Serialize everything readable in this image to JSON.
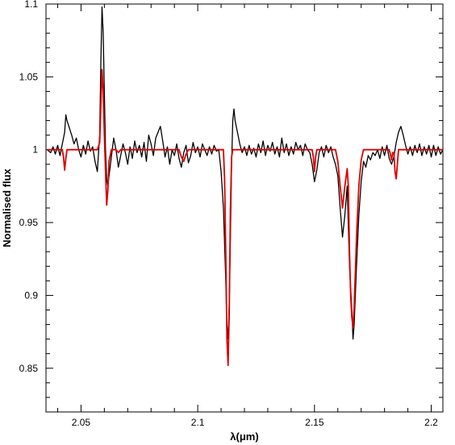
{
  "chart_data": {
    "type": "line",
    "title": "",
    "xlabel": "λ(μm)",
    "ylabel": "Normalised flux",
    "xlim": [
      2.035,
      2.205
    ],
    "ylim": [
      0.82,
      1.1
    ],
    "xticks": [
      2.05,
      2.1,
      2.15,
      2.2
    ],
    "xtick_labels": [
      "2.05",
      "2.1",
      "2.15",
      "2.2"
    ],
    "yticks": [
      0.85,
      0.9,
      0.95,
      1.0,
      1.05,
      1.1
    ],
    "ytick_labels": [
      "0.85",
      "0.9",
      "0.95",
      "1",
      "1.05",
      "1.1"
    ],
    "grid": false,
    "legend": "none",
    "series": [
      {
        "color": "#000000",
        "points": [
          [
            2.0355,
            1.0
          ],
          [
            2.037,
            0.998
          ],
          [
            2.038,
            1.002
          ],
          [
            2.039,
            0.997
          ],
          [
            2.04,
            1.003
          ],
          [
            2.041,
            0.996
          ],
          [
            2.042,
            1.004
          ],
          [
            2.043,
            1.012
          ],
          [
            2.0435,
            1.024
          ],
          [
            2.044,
            1.02
          ],
          [
            2.045,
            1.015
          ],
          [
            2.046,
            1.01
          ],
          [
            2.047,
            1.004
          ],
          [
            2.048,
            1.008
          ],
          [
            2.049,
            1.0
          ],
          [
            2.05,
            0.995
          ],
          [
            2.051,
            1.003
          ],
          [
            2.052,
            0.997
          ],
          [
            2.053,
            1.006
          ],
          [
            2.054,
            0.999
          ],
          [
            2.055,
            1.002
          ],
          [
            2.056,
            0.992
          ],
          [
            2.057,
            0.985
          ],
          [
            2.058,
            1.01
          ],
          [
            2.0585,
            1.06
          ],
          [
            2.059,
            1.098
          ],
          [
            2.0595,
            1.08
          ],
          [
            2.06,
            1.04
          ],
          [
            2.0605,
            1.0
          ],
          [
            2.061,
            0.98
          ],
          [
            2.0615,
            0.975
          ],
          [
            2.062,
            0.982
          ],
          [
            2.063,
            0.995
          ],
          [
            2.064,
            1.008
          ],
          [
            2.065,
            1.0
          ],
          [
            2.066,
            0.988
          ],
          [
            2.067,
            0.996
          ],
          [
            2.068,
            1.004
          ],
          [
            2.069,
            0.998
          ],
          [
            2.07,
            0.99
          ],
          [
            2.071,
            1.002
          ],
          [
            2.072,
            0.994
          ],
          [
            2.073,
            1.006
          ],
          [
            2.074,
            0.998
          ],
          [
            2.075,
            1.003
          ],
          [
            2.076,
            0.995
          ],
          [
            2.077,
            1.005
          ],
          [
            2.078,
            0.992
          ],
          [
            2.079,
            1.01
          ],
          [
            2.08,
            1.004
          ],
          [
            2.081,
            0.996
          ],
          [
            2.082,
            1.008
          ],
          [
            2.083,
            1.012
          ],
          [
            2.084,
            1.016
          ],
          [
            2.085,
            1.006
          ],
          [
            2.086,
            0.995
          ],
          [
            2.087,
            1.002
          ],
          [
            2.088,
            0.99
          ],
          [
            2.089,
            1.0
          ],
          [
            2.09,
            0.996
          ],
          [
            2.091,
            1.004
          ],
          [
            2.092,
            0.994
          ],
          [
            2.093,
            0.988
          ],
          [
            2.094,
            0.998
          ],
          [
            2.095,
            1.003
          ],
          [
            2.096,
            0.991
          ],
          [
            2.097,
            0.996
          ],
          [
            2.098,
            1.005
          ],
          [
            2.099,
            0.998
          ],
          [
            2.1,
            1.002
          ],
          [
            2.101,
            0.995
          ],
          [
            2.102,
            1.004
          ],
          [
            2.103,
            1.0
          ],
          [
            2.104,
            0.996
          ],
          [
            2.105,
            1.002
          ],
          [
            2.106,
            0.997
          ],
          [
            2.107,
            1.003
          ],
          [
            2.108,
            0.999
          ],
          [
            2.109,
            1.0
          ],
          [
            2.11,
            0.985
          ],
          [
            2.111,
            0.96
          ],
          [
            2.112,
            0.91
          ],
          [
            2.1125,
            0.88
          ],
          [
            2.113,
            0.87
          ],
          [
            2.1135,
            0.895
          ],
          [
            2.114,
            0.94
          ],
          [
            2.1145,
            0.99
          ],
          [
            2.115,
            1.02
          ],
          [
            2.1155,
            1.028
          ],
          [
            2.116,
            1.02
          ],
          [
            2.117,
            1.012
          ],
          [
            2.118,
            1.004
          ],
          [
            2.119,
            0.998
          ],
          [
            2.12,
            1.002
          ],
          [
            2.121,
            0.996
          ],
          [
            2.122,
            1.003
          ],
          [
            2.123,
            0.997
          ],
          [
            2.124,
            1.001
          ],
          [
            2.125,
            0.995
          ],
          [
            2.126,
            1.004
          ],
          [
            2.127,
            0.998
          ],
          [
            2.128,
            1.006
          ],
          [
            2.129,
            0.996
          ],
          [
            2.13,
            1.003
          ],
          [
            2.131,
            0.999
          ],
          [
            2.132,
            1.005
          ],
          [
            2.133,
            0.997
          ],
          [
            2.134,
            1.002
          ],
          [
            2.135,
            0.995
          ],
          [
            2.136,
            1.008
          ],
          [
            2.137,
            0.998
          ],
          [
            2.138,
            1.004
          ],
          [
            2.139,
            0.996
          ],
          [
            2.14,
            1.002
          ],
          [
            2.141,
            0.997
          ],
          [
            2.142,
            1.005
          ],
          [
            2.143,
            1.0
          ],
          [
            2.144,
            1.003
          ],
          [
            2.145,
            0.996
          ],
          [
            2.146,
            1.004
          ],
          [
            2.147,
            1.0
          ],
          [
            2.148,
            0.998
          ],
          [
            2.149,
            0.99
          ],
          [
            2.15,
            0.978
          ],
          [
            2.151,
            0.986
          ],
          [
            2.152,
            0.998
          ],
          [
            2.153,
            1.002
          ],
          [
            2.154,
            0.995
          ],
          [
            2.155,
            1.003
          ],
          [
            2.156,
            0.998
          ],
          [
            2.157,
            1.002
          ],
          [
            2.158,
            0.995
          ],
          [
            2.159,
            0.99
          ],
          [
            2.16,
            0.982
          ],
          [
            2.161,
            0.96
          ],
          [
            2.162,
            0.94
          ],
          [
            2.163,
            0.955
          ],
          [
            2.164,
            0.975
          ],
          [
            2.165,
            0.92
          ],
          [
            2.166,
            0.89
          ],
          [
            2.1665,
            0.87
          ],
          [
            2.167,
            0.88
          ],
          [
            2.168,
            0.92
          ],
          [
            2.169,
            0.955
          ],
          [
            2.17,
            0.978
          ],
          [
            2.171,
            0.992
          ],
          [
            2.172,
            0.988
          ],
          [
            2.173,
            0.996
          ],
          [
            2.174,
            0.993
          ],
          [
            2.175,
            0.998
          ],
          [
            2.176,
            0.996
          ],
          [
            2.177,
            1.0
          ],
          [
            2.178,
            0.994
          ],
          [
            2.179,
            1.002
          ],
          [
            2.18,
            0.996
          ],
          [
            2.181,
            1.003
          ],
          [
            2.182,
            0.994
          ],
          [
            2.183,
            0.99
          ],
          [
            2.184,
            0.995
          ],
          [
            2.185,
            1.005
          ],
          [
            2.186,
            1.012
          ],
          [
            2.187,
            1.016
          ],
          [
            2.188,
            1.01
          ],
          [
            2.189,
            1.003
          ],
          [
            2.19,
            0.997
          ],
          [
            2.191,
            1.002
          ],
          [
            2.192,
            0.996
          ],
          [
            2.193,
            1.003
          ],
          [
            2.194,
            0.998
          ],
          [
            2.195,
            1.004
          ],
          [
            2.196,
            0.996
          ],
          [
            2.197,
            1.002
          ],
          [
            2.198,
            0.997
          ],
          [
            2.199,
            1.003
          ],
          [
            2.2,
            0.995
          ],
          [
            2.201,
            1.003
          ],
          [
            2.202,
            0.996
          ],
          [
            2.203,
            1.002
          ],
          [
            2.204,
            0.997
          ],
          [
            2.205,
            1.0
          ]
        ]
      },
      {
        "color": "#dd0000",
        "points": [
          [
            2.0355,
            1.0
          ],
          [
            2.042,
            1.0
          ],
          [
            2.0425,
            0.995
          ],
          [
            2.043,
            0.986
          ],
          [
            2.0435,
            0.994
          ],
          [
            2.044,
            1.0
          ],
          [
            2.057,
            1.0
          ],
          [
            2.058,
            1.005
          ],
          [
            2.0585,
            1.03
          ],
          [
            2.059,
            1.055
          ],
          [
            2.0595,
            1.04
          ],
          [
            2.06,
            1.01
          ],
          [
            2.0605,
            0.985
          ],
          [
            2.061,
            0.962
          ],
          [
            2.0615,
            0.972
          ],
          [
            2.062,
            0.992
          ],
          [
            2.063,
            1.0
          ],
          [
            2.065,
            1.0
          ],
          [
            2.066,
            0.998
          ],
          [
            2.067,
            1.0
          ],
          [
            2.092,
            1.0
          ],
          [
            2.093,
            0.995
          ],
          [
            2.094,
            0.992
          ],
          [
            2.095,
            0.997
          ],
          [
            2.096,
            1.0
          ],
          [
            2.111,
            1.0
          ],
          [
            2.1115,
            0.98
          ],
          [
            2.112,
            0.93
          ],
          [
            2.1125,
            0.87
          ],
          [
            2.113,
            0.852
          ],
          [
            2.1135,
            0.89
          ],
          [
            2.114,
            0.96
          ],
          [
            2.1145,
            0.995
          ],
          [
            2.115,
            1.0
          ],
          [
            2.149,
            1.0
          ],
          [
            2.1495,
            0.995
          ],
          [
            2.15,
            0.985
          ],
          [
            2.1505,
            0.995
          ],
          [
            2.151,
            1.0
          ],
          [
            2.159,
            1.0
          ],
          [
            2.16,
            0.992
          ],
          [
            2.161,
            0.975
          ],
          [
            2.162,
            0.96
          ],
          [
            2.163,
            0.975
          ],
          [
            2.164,
            0.987
          ],
          [
            2.1645,
            0.975
          ],
          [
            2.165,
            0.93
          ],
          [
            2.1655,
            0.9
          ],
          [
            2.166,
            0.885
          ],
          [
            2.1665,
            0.878
          ],
          [
            2.167,
            0.892
          ],
          [
            2.168,
            0.94
          ],
          [
            2.169,
            0.975
          ],
          [
            2.17,
            0.993
          ],
          [
            2.171,
            1.0
          ],
          [
            2.182,
            1.0
          ],
          [
            2.1825,
            0.997
          ],
          [
            2.183,
            0.993
          ],
          [
            2.1835,
            0.998
          ],
          [
            2.184,
            0.998
          ],
          [
            2.1845,
            0.985
          ],
          [
            2.185,
            0.98
          ],
          [
            2.1855,
            0.99
          ],
          [
            2.186,
            1.0
          ],
          [
            2.205,
            1.0
          ]
        ]
      }
    ]
  }
}
